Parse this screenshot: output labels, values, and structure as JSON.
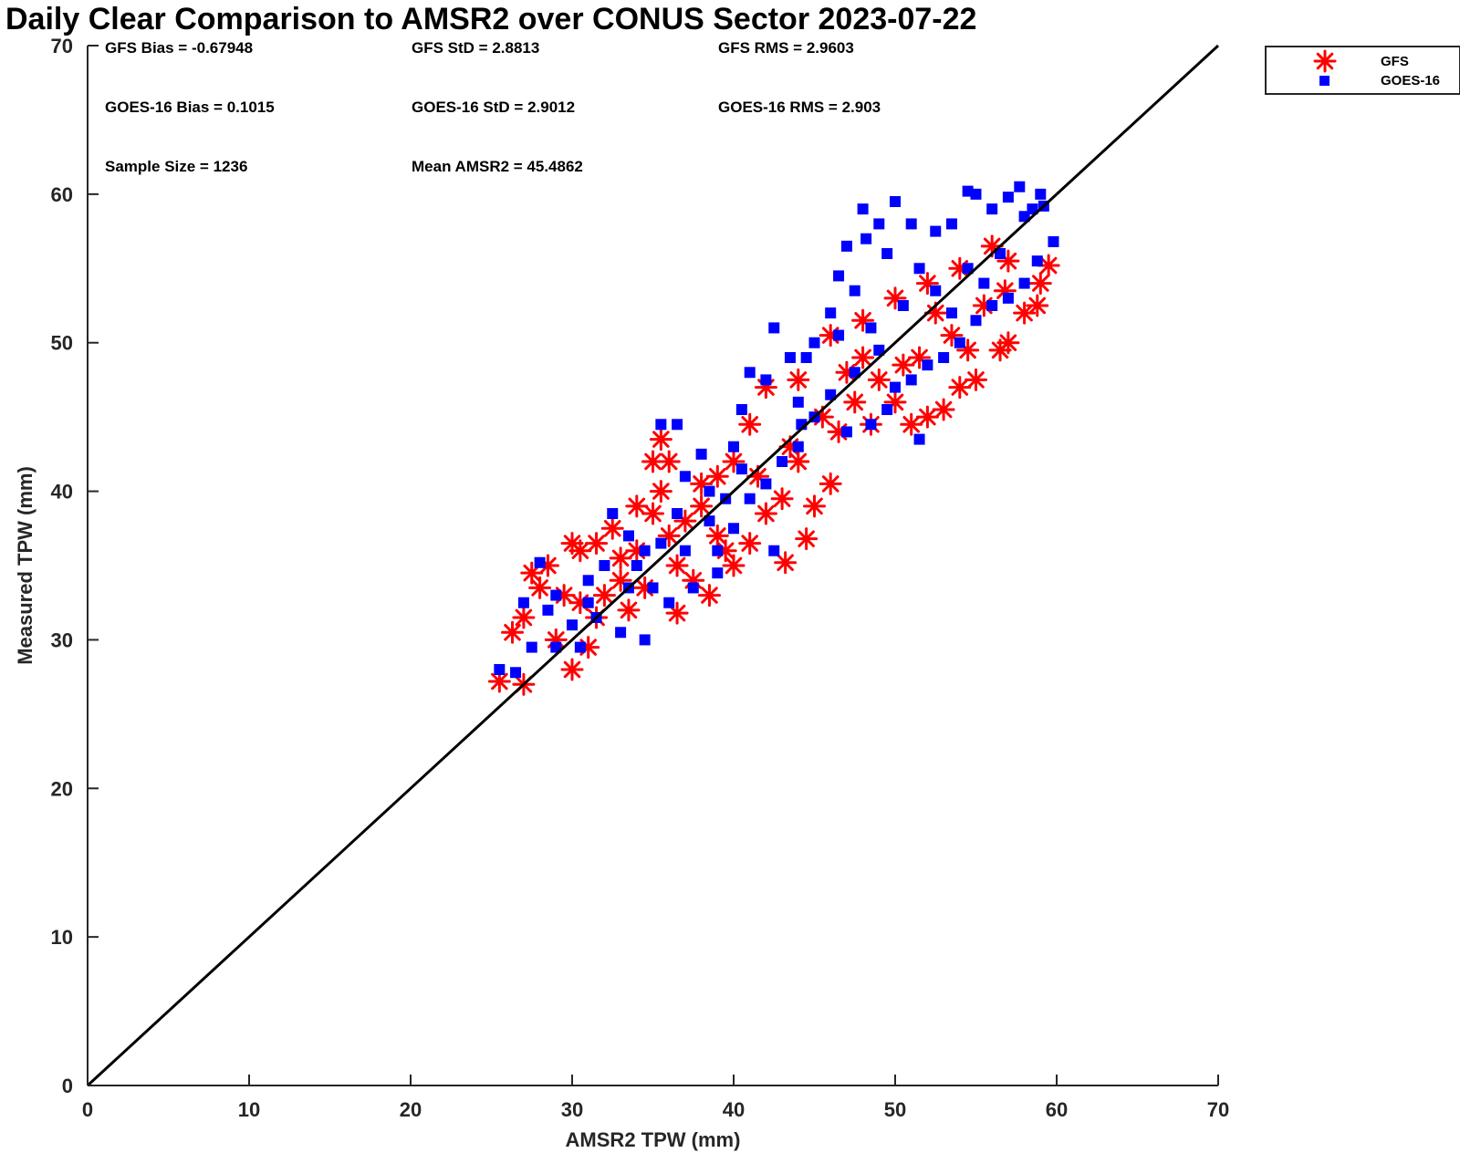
{
  "chart_data": {
    "type": "scatter",
    "title": "Daily Clear Comparison to AMSR2 over CONUS Sector 2023-07-22",
    "xlabel": "AMSR2 TPW (mm)",
    "ylabel": "Measured TPW (mm)",
    "xlim": [
      0,
      70
    ],
    "ylim": [
      0,
      70
    ],
    "xticks": [
      "0",
      "10",
      "20",
      "30",
      "40",
      "50",
      "60",
      "70"
    ],
    "yticks": [
      "0",
      "10",
      "20",
      "30",
      "40",
      "50",
      "60",
      "70"
    ],
    "grid": false,
    "legend_position": "top-right (outside plot)",
    "one_to_one_line": [
      [
        0,
        0
      ],
      [
        70,
        70
      ]
    ],
    "stats": {
      "gfs_bias": "GFS Bias = -0.67948",
      "gfs_std": "GFS StD = 2.8813",
      "gfs_rms": "GFS RMS = 2.9603",
      "goes_bias": "GOES-16 Bias = 0.1015",
      "goes_std": "GOES-16 StD = 2.9012",
      "goes_rms": "GOES-16 RMS = 2.903",
      "sample_size": "Sample Size = 1236",
      "mean_amsr2": "Mean AMSR2 = 45.4862"
    },
    "series": [
      {
        "name": "GFS",
        "marker": "asterisk",
        "color": "#ff0000",
        "points": [
          [
            25.5,
            27.2
          ],
          [
            27.0,
            27.0
          ],
          [
            26.3,
            30.5
          ],
          [
            29.0,
            30.0
          ],
          [
            30.0,
            28.0
          ],
          [
            31.0,
            29.5
          ],
          [
            27.5,
            34.5
          ],
          [
            28.5,
            35.0
          ],
          [
            30.5,
            36.0
          ],
          [
            31.5,
            36.5
          ],
          [
            32.5,
            37.5
          ],
          [
            33.0,
            34.0
          ],
          [
            34.0,
            39.0
          ],
          [
            35.0,
            42.0
          ],
          [
            35.5,
            43.5
          ],
          [
            36.0,
            42.0
          ],
          [
            35.5,
            40.0
          ],
          [
            34.5,
            33.5
          ],
          [
            36.5,
            31.8
          ],
          [
            38.5,
            33.0
          ],
          [
            39.0,
            37.0
          ],
          [
            40.0,
            35.0
          ],
          [
            41.0,
            36.5
          ],
          [
            42.0,
            38.5
          ],
          [
            43.0,
            39.5
          ],
          [
            43.2,
            35.2
          ],
          [
            44.5,
            36.8
          ],
          [
            45.0,
            39.0
          ],
          [
            46.0,
            40.5
          ],
          [
            46.5,
            44.0
          ],
          [
            47.5,
            46.0
          ],
          [
            48.5,
            44.5
          ],
          [
            50.0,
            46.0
          ],
          [
            51.0,
            44.5
          ],
          [
            52.0,
            45.0
          ],
          [
            53.0,
            45.5
          ],
          [
            54.0,
            47.0
          ],
          [
            55.0,
            47.5
          ],
          [
            56.5,
            49.5
          ],
          [
            57.0,
            50.0
          ],
          [
            58.0,
            52.0
          ],
          [
            58.8,
            52.5
          ],
          [
            59.0,
            54.0
          ],
          [
            59.5,
            55.2
          ],
          [
            57.0,
            55.5
          ],
          [
            56.0,
            56.5
          ],
          [
            54.0,
            55.0
          ],
          [
            52.0,
            54.0
          ],
          [
            50.0,
            53.0
          ],
          [
            48.0,
            51.5
          ],
          [
            46.0,
            50.5
          ],
          [
            44.0,
            47.5
          ],
          [
            42.0,
            47.0
          ],
          [
            41.0,
            44.5
          ],
          [
            40.0,
            42.0
          ],
          [
            39.0,
            41.0
          ],
          [
            38.0,
            40.5
          ],
          [
            37.0,
            38.0
          ],
          [
            36.0,
            37.0
          ],
          [
            34.0,
            36.0
          ],
          [
            33.0,
            35.5
          ],
          [
            32.0,
            33.0
          ],
          [
            31.5,
            31.5
          ],
          [
            30.5,
            32.5
          ],
          [
            29.5,
            33.0
          ],
          [
            28.0,
            33.5
          ],
          [
            27.0,
            31.5
          ],
          [
            36.5,
            35.0
          ],
          [
            37.5,
            34.0
          ],
          [
            41.5,
            41.0
          ],
          [
            43.5,
            43.0
          ],
          [
            45.5,
            45.0
          ],
          [
            47.0,
            48.0
          ],
          [
            49.0,
            47.5
          ],
          [
            51.5,
            49.0
          ],
          [
            53.5,
            50.5
          ],
          [
            55.5,
            52.5
          ],
          [
            56.8,
            53.5
          ],
          [
            30.0,
            36.5
          ],
          [
            33.5,
            32.0
          ],
          [
            39.5,
            36.0
          ],
          [
            44.0,
            42.0
          ],
          [
            48.0,
            49.0
          ],
          [
            52.5,
            52.0
          ],
          [
            54.5,
            49.5
          ],
          [
            50.5,
            48.5
          ],
          [
            38.0,
            39.0
          ],
          [
            35.0,
            38.5
          ]
        ]
      },
      {
        "name": "GOES-16",
        "marker": "square",
        "color": "#0000ff",
        "points": [
          [
            25.5,
            28.0
          ],
          [
            26.5,
            27.8
          ],
          [
            27.5,
            29.5
          ],
          [
            28.0,
            35.2
          ],
          [
            29.0,
            33.0
          ],
          [
            27.0,
            32.5
          ],
          [
            30.0,
            31.0
          ],
          [
            31.0,
            34.0
          ],
          [
            32.5,
            38.5
          ],
          [
            33.5,
            37.0
          ],
          [
            34.0,
            35.0
          ],
          [
            35.5,
            36.5
          ],
          [
            35.5,
            44.5
          ],
          [
            36.5,
            44.5
          ],
          [
            37.0,
            41.0
          ],
          [
            38.0,
            42.5
          ],
          [
            38.5,
            38.0
          ],
          [
            39.0,
            36.0
          ],
          [
            40.0,
            43.0
          ],
          [
            40.5,
            45.5
          ],
          [
            41.0,
            48.0
          ],
          [
            42.0,
            47.5
          ],
          [
            43.5,
            49.0
          ],
          [
            44.0,
            46.0
          ],
          [
            45.0,
            50.0
          ],
          [
            46.0,
            52.0
          ],
          [
            46.5,
            54.5
          ],
          [
            47.0,
            56.5
          ],
          [
            47.5,
            53.5
          ],
          [
            48.0,
            59.0
          ],
          [
            48.2,
            57.0
          ],
          [
            49.0,
            58.0
          ],
          [
            49.5,
            56.0
          ],
          [
            50.0,
            59.5
          ],
          [
            51.0,
            58.0
          ],
          [
            51.5,
            55.0
          ],
          [
            52.5,
            57.5
          ],
          [
            53.5,
            58.0
          ],
          [
            54.5,
            60.2
          ],
          [
            55.0,
            60.0
          ],
          [
            56.0,
            59.0
          ],
          [
            57.0,
            59.8
          ],
          [
            57.7,
            60.5
          ],
          [
            58.0,
            58.5
          ],
          [
            58.5,
            59.0
          ],
          [
            59.0,
            60.0
          ],
          [
            59.2,
            59.2
          ],
          [
            59.8,
            56.8
          ],
          [
            58.8,
            55.5
          ],
          [
            58.0,
            54.0
          ],
          [
            57.0,
            53.0
          ],
          [
            56.0,
            52.5
          ],
          [
            55.0,
            51.5
          ],
          [
            54.0,
            50.0
          ],
          [
            53.0,
            49.0
          ],
          [
            52.0,
            48.5
          ],
          [
            51.0,
            47.5
          ],
          [
            50.0,
            47.0
          ],
          [
            49.5,
            45.5
          ],
          [
            48.5,
            44.5
          ],
          [
            51.5,
            43.5
          ],
          [
            47.0,
            44.0
          ],
          [
            46.0,
            46.5
          ],
          [
            45.0,
            45.0
          ],
          [
            44.0,
            43.0
          ],
          [
            43.0,
            42.0
          ],
          [
            42.0,
            40.5
          ],
          [
            41.0,
            39.5
          ],
          [
            40.0,
            37.5
          ],
          [
            39.0,
            34.5
          ],
          [
            37.5,
            33.5
          ],
          [
            36.0,
            32.5
          ],
          [
            34.5,
            30.0
          ],
          [
            33.0,
            30.5
          ],
          [
            31.5,
            31.5
          ],
          [
            30.5,
            29.5
          ],
          [
            29.0,
            29.5
          ],
          [
            28.5,
            32.0
          ],
          [
            38.5,
            40.0
          ],
          [
            40.5,
            41.5
          ],
          [
            42.5,
            51.0
          ],
          [
            44.5,
            49.0
          ],
          [
            46.5,
            50.5
          ],
          [
            48.5,
            51.0
          ],
          [
            50.5,
            52.5
          ],
          [
            52.5,
            53.5
          ],
          [
            54.5,
            55.0
          ],
          [
            56.5,
            56.0
          ],
          [
            55.5,
            54.0
          ],
          [
            53.5,
            52.0
          ],
          [
            49.0,
            49.5
          ],
          [
            47.5,
            48.0
          ],
          [
            36.5,
            38.5
          ],
          [
            34.5,
            36.0
          ],
          [
            32.0,
            35.0
          ],
          [
            42.5,
            36.0
          ],
          [
            44.2,
            44.5
          ],
          [
            39.5,
            39.5
          ],
          [
            37.0,
            36.0
          ],
          [
            35.0,
            33.5
          ],
          [
            33.5,
            33.5
          ],
          [
            31.0,
            32.5
          ]
        ]
      }
    ]
  }
}
